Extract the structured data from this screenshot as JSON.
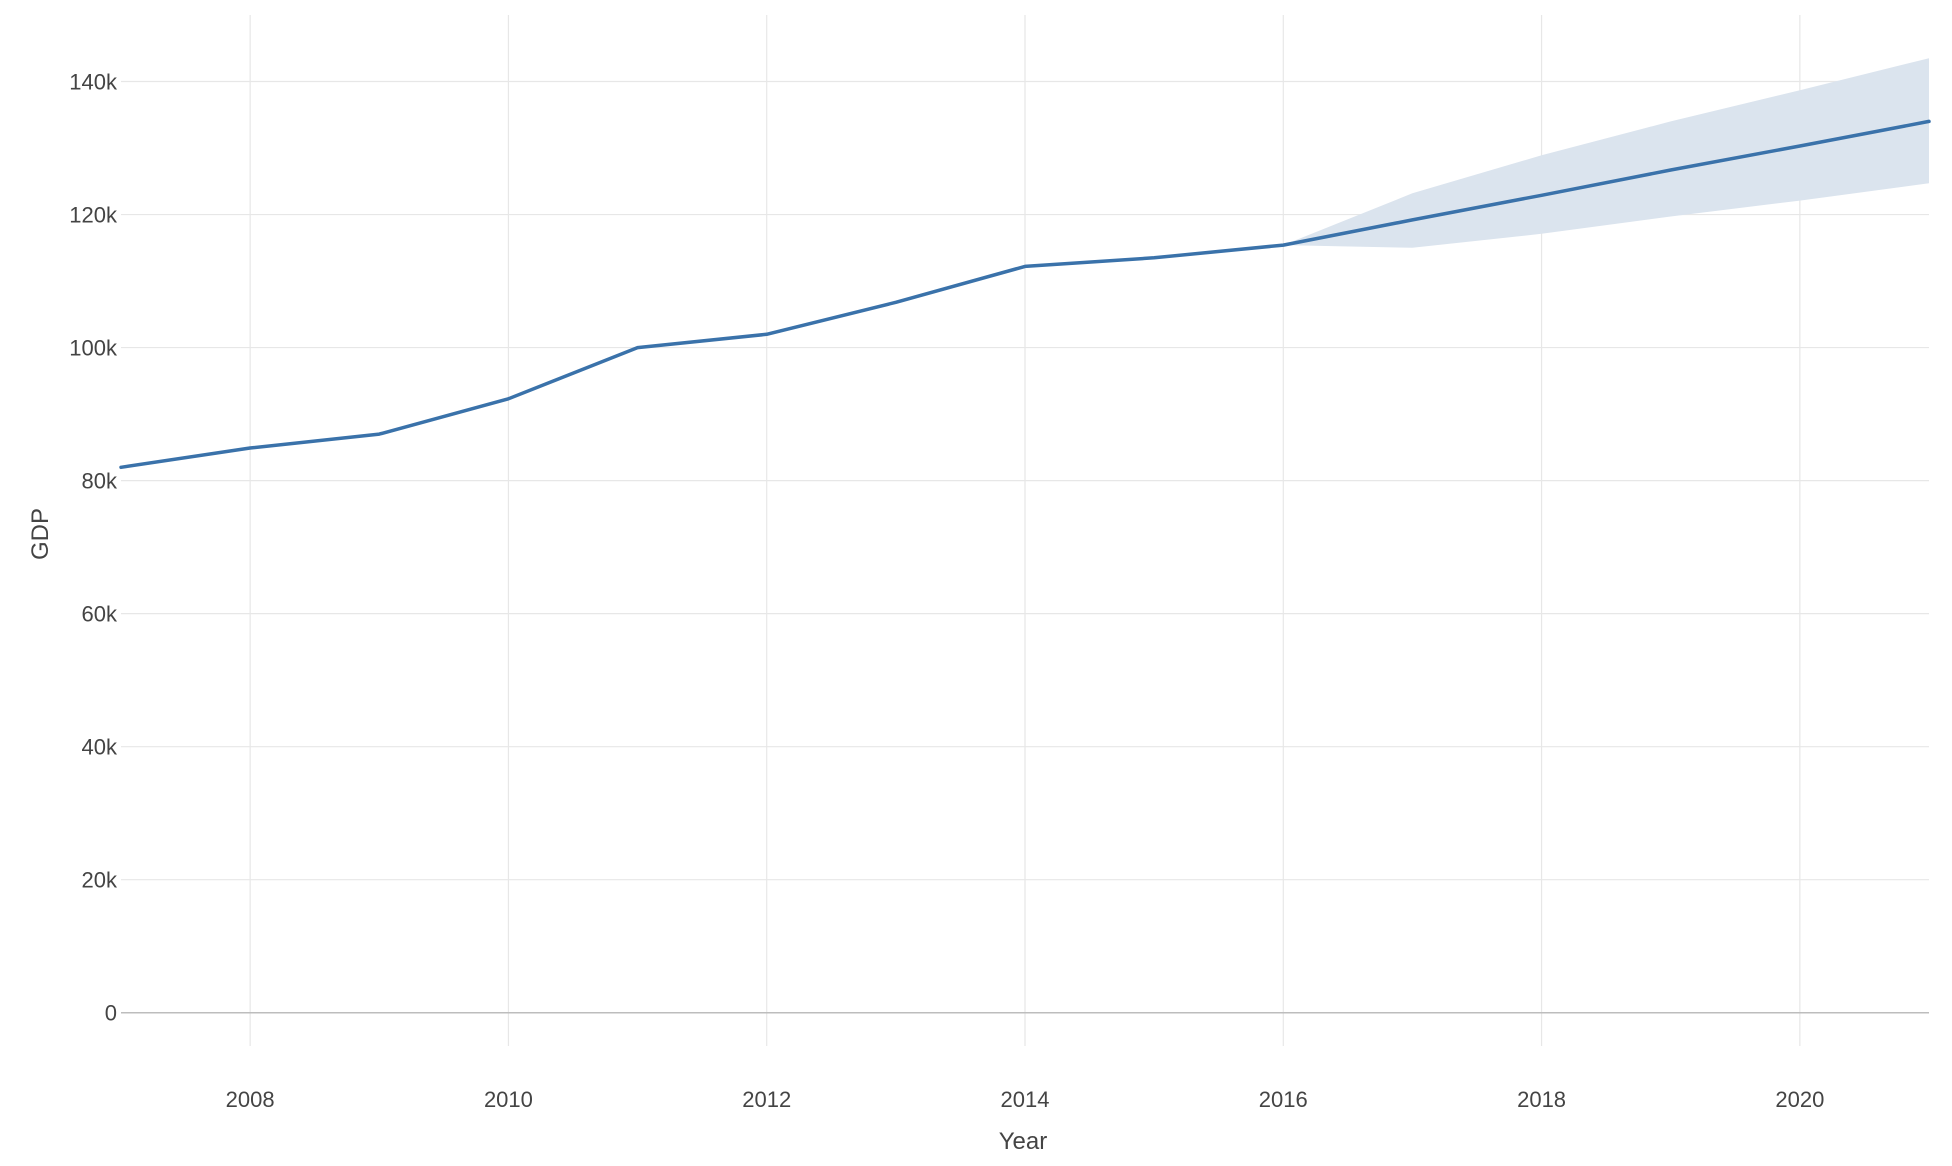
{
  "chart_data": {
    "type": "line",
    "title": "",
    "xlabel": "Year",
    "ylabel": "GDP",
    "xlim": [
      2007,
      2021
    ],
    "ylim": [
      -5000,
      150000
    ],
    "x_ticks": [
      2008,
      2010,
      2012,
      2014,
      2016,
      2018,
      2020
    ],
    "x_tick_labels": [
      "2008",
      "2010",
      "2012",
      "2014",
      "2016",
      "2018",
      "2020"
    ],
    "y_ticks": [
      0,
      20000,
      40000,
      60000,
      80000,
      100000,
      120000,
      140000
    ],
    "y_tick_labels": [
      "0",
      "20k",
      "40k",
      "60k",
      "80k",
      "100k",
      "120k",
      "140k"
    ],
    "grid": true,
    "legend": "none",
    "series": [
      {
        "kind": "line",
        "x": [
          2007,
          2008,
          2009,
          2010,
          2011,
          2012,
          2013,
          2014,
          2015,
          2016,
          2017,
          2018,
          2019,
          2020,
          2021
        ],
        "y": [
          82000,
          84900,
          87000,
          92300,
          100000,
          102000,
          106800,
          112200,
          113500,
          115400,
          119200,
          122900,
          126700,
          130300,
          134000
        ],
        "color": "#3a72aa"
      },
      {
        "kind": "band",
        "x": [
          2016,
          2017,
          2018,
          2019,
          2020,
          2021
        ],
        "lower": [
          115400,
          115000,
          117100,
          119700,
          122100,
          124700
        ],
        "upper": [
          115400,
          123200,
          128900,
          134000,
          138700,
          143500
        ],
        "color": "#dbe4ee"
      }
    ],
    "colors": {
      "grid": "#e7e7e7",
      "zero_line": "#bdbdbd",
      "text": "#444444"
    }
  }
}
